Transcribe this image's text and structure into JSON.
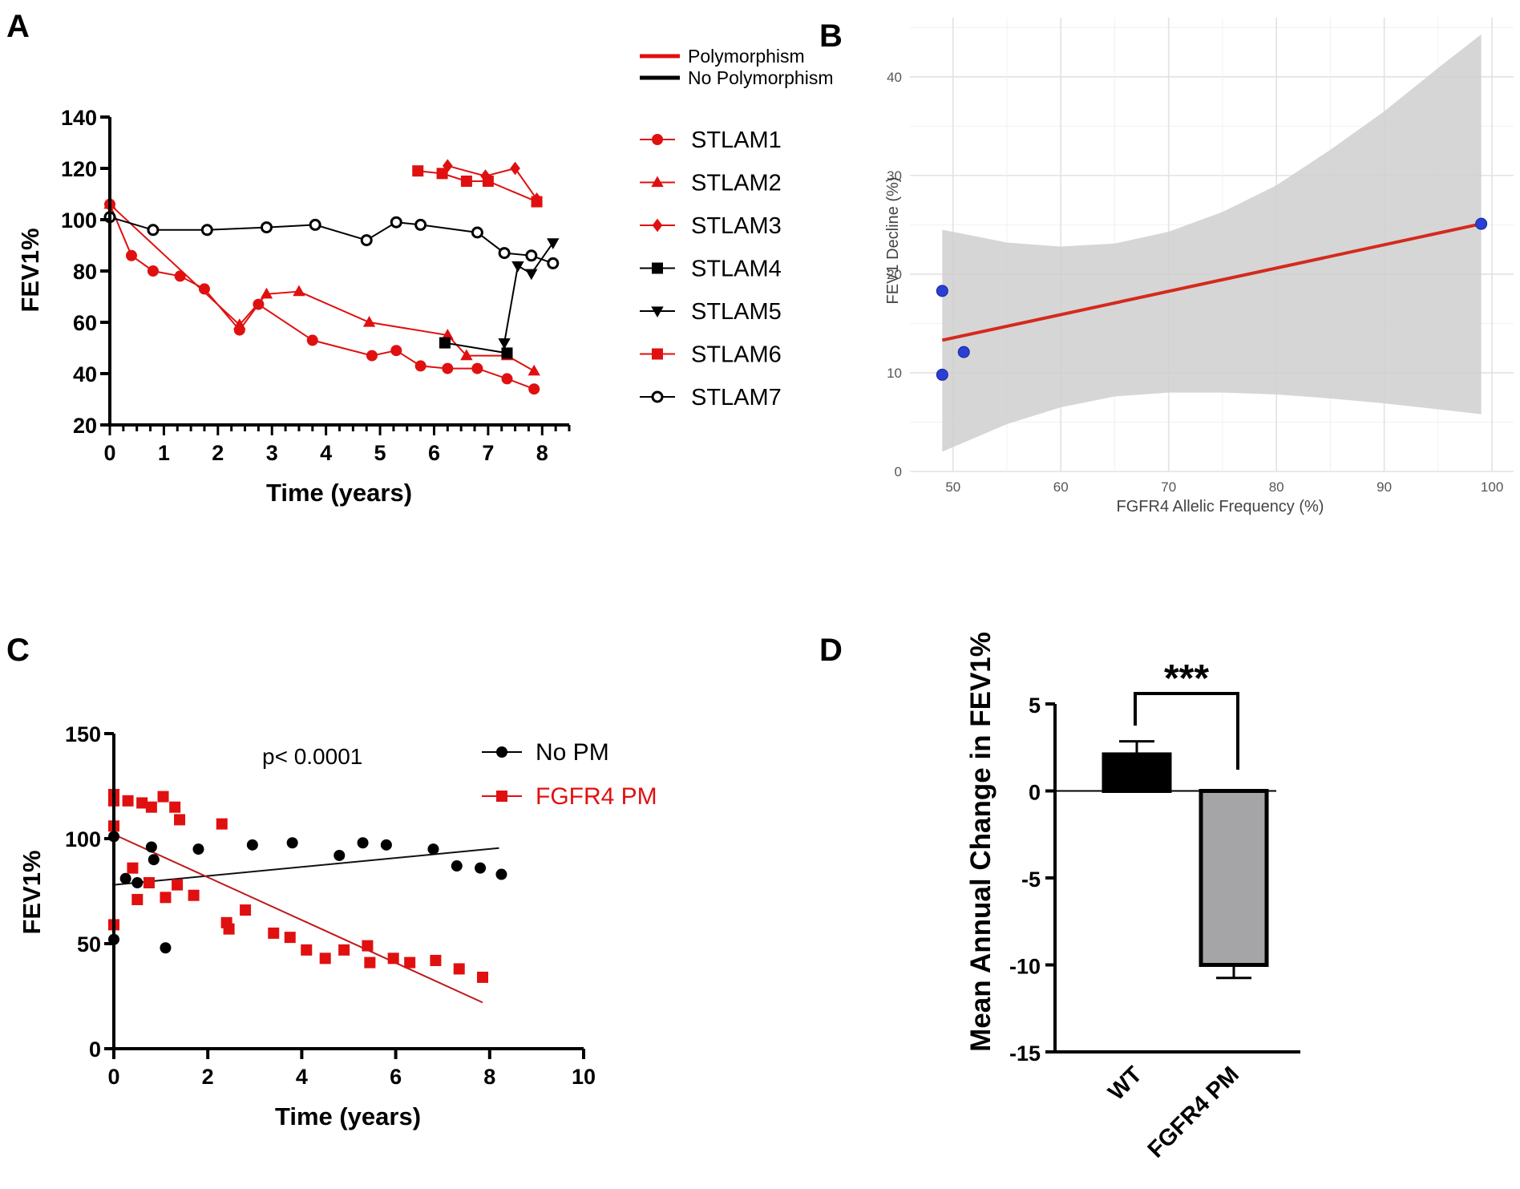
{
  "chart_data": [
    {
      "panel": "A",
      "type": "line",
      "xlabel": "Time (years)",
      "ylabel": "FEV1%",
      "xlim": [
        0,
        8.5
      ],
      "ylim": [
        20,
        140
      ],
      "xticks": [
        0,
        1,
        2,
        3,
        4,
        5,
        6,
        7,
        8
      ],
      "yticks": [
        20,
        40,
        60,
        80,
        100,
        120,
        140
      ],
      "legend_group": [
        {
          "name": "Polymorphism",
          "color": "#e01010"
        },
        {
          "name": "No Polymorphism",
          "color": "#000000"
        }
      ],
      "series": [
        {
          "name": "STLAM1",
          "color": "#e01010",
          "marker": "circle",
          "x": [
            0,
            0.4,
            0.8,
            1.3,
            1.75,
            2.4,
            2.75,
            3.75,
            4.85,
            5.3,
            5.75,
            6.25,
            6.8,
            7.35,
            7.85
          ],
          "y": [
            106,
            86,
            80,
            78,
            73,
            57,
            67,
            53,
            47,
            49,
            43,
            42,
            42,
            38,
            34
          ]
        },
        {
          "name": "STLAM2",
          "color": "#e01010",
          "marker": "triangle",
          "x": [
            0,
            2.4,
            2.9,
            3.5,
            4.8,
            6.25,
            6.6,
            7.35,
            7.85
          ],
          "y": [
            106,
            59,
            71,
            72,
            60,
            55,
            47,
            47,
            41
          ]
        },
        {
          "name": "STLAM3",
          "color": "#e01010",
          "marker": "diamond",
          "x": [
            6.25,
            6.95,
            7.5,
            7.9
          ],
          "y": [
            121,
            117,
            120,
            108
          ]
        },
        {
          "name": "STLAM4",
          "color": "#000000",
          "marker": "square",
          "x": [
            6.2,
            7.35
          ],
          "y": [
            52,
            48
          ]
        },
        {
          "name": "STLAM5",
          "color": "#000000",
          "marker": "triangle-down",
          "x": [
            7.3,
            7.55,
            7.8,
            8.2
          ],
          "y": [
            52,
            82,
            79,
            91
          ]
        },
        {
          "name": "STLAM6",
          "color": "#e01010",
          "marker": "square",
          "x": [
            5.7,
            6.15,
            6.6,
            7.0,
            7.9
          ],
          "y": [
            119,
            118,
            115,
            115,
            107
          ]
        },
        {
          "name": "STLAM7",
          "color": "#000000",
          "marker": "open-circle",
          "x": [
            0,
            0.8,
            1.8,
            2.9,
            3.8,
            4.75,
            5.3,
            5.75,
            6.8,
            7.3,
            7.8,
            8.2
          ],
          "y": [
            101,
            96,
            96,
            97,
            98,
            92,
            99,
            98,
            95,
            87,
            86,
            83
          ]
        }
      ]
    },
    {
      "panel": "B",
      "type": "scatter",
      "xlabel": "FGFR4 Allelic Frequency (%)",
      "ylabel": "FEV1 Decline (%)",
      "xlim": [
        46,
        102
      ],
      "ylim": [
        0,
        46
      ],
      "xticks": [
        50,
        60,
        70,
        80,
        90,
        100
      ],
      "yticks": [
        0,
        10,
        20,
        30,
        40
      ],
      "points": {
        "x": [
          49,
          49,
          51,
          99
        ],
        "y": [
          18.3,
          9.8,
          12.1,
          25.1
        ],
        "color": "#2a3fd6"
      },
      "regression": {
        "x": [
          49,
          99
        ],
        "y": [
          13.3,
          25.1
        ],
        "color": "#d42a1c"
      },
      "confidence_band": {
        "x": [
          49,
          55,
          60,
          65,
          70,
          75,
          80,
          85,
          90,
          95,
          99
        ],
        "upper": [
          24.5,
          23.2,
          22.8,
          23.1,
          24.3,
          26.3,
          29.0,
          32.6,
          36.5,
          40.9,
          44.3
        ],
        "lower": [
          2.0,
          4.8,
          6.5,
          7.6,
          8.0,
          8.0,
          7.8,
          7.4,
          6.9,
          6.3,
          5.8
        ]
      }
    },
    {
      "panel": "C",
      "type": "scatter",
      "xlabel": "Time (years)",
      "ylabel": "FEV1%",
      "xlim": [
        0,
        10
      ],
      "ylim": [
        0,
        150
      ],
      "xticks": [
        0,
        2,
        4,
        6,
        8,
        10
      ],
      "yticks": [
        0,
        50,
        100,
        150
      ],
      "annotation": "p< 0.0001",
      "series": [
        {
          "name": "No PM",
          "color": "#000000",
          "marker": "circle",
          "x": [
            0,
            0,
            0.25,
            0.5,
            0.8,
            0.85,
            1.1,
            1.8,
            2.95,
            3.8,
            4.8,
            5.3,
            5.8,
            6.8,
            7.3,
            7.8,
            8.25
          ],
          "y": [
            101,
            52,
            81,
            79,
            96,
            90,
            48,
            95,
            97,
            98,
            92,
            98,
            97,
            95,
            87,
            86,
            83
          ],
          "fit": {
            "x": [
              0,
              8.2
            ],
            "y": [
              78,
              95.5
            ]
          }
        },
        {
          "name": "FGFR4 PM",
          "color": "#e01010",
          "marker": "square",
          "x": [
            0,
            0,
            0,
            0,
            0.3,
            0.4,
            0.5,
            0.6,
            0.75,
            0.8,
            1.05,
            1.1,
            1.3,
            1.35,
            1.4,
            1.7,
            2.3,
            2.4,
            2.45,
            2.8,
            3.4,
            3.75,
            4.1,
            4.5,
            4.9,
            5.4,
            5.45,
            5.95,
            6.3,
            6.85,
            7.35,
            7.85
          ],
          "y": [
            121,
            118,
            106,
            59,
            118,
            86,
            71,
            117,
            79,
            115,
            120,
            72,
            115,
            78,
            109,
            73,
            107,
            60,
            57,
            66,
            55,
            53,
            47,
            43,
            47,
            49,
            41,
            43,
            41,
            42,
            38,
            34
          ],
          "fit": {
            "x": [
              0,
              7.85
            ],
            "y": [
              102,
              22
            ]
          }
        }
      ]
    },
    {
      "panel": "D",
      "type": "bar",
      "ylabel": "Mean Annual Change in FEV1%",
      "categories": [
        "WT",
        "FGFR4 PM"
      ],
      "values": [
        2.1,
        -10.0
      ],
      "errors": [
        0.75,
        0.75
      ],
      "colors": [
        "#000000",
        "#a5a5a8"
      ],
      "ylim": [
        -15,
        5
      ],
      "yticks": [
        5,
        0,
        -5,
        -10,
        -15
      ],
      "significance": "***"
    }
  ],
  "panel_labels": {
    "a": "A",
    "b": "B",
    "c": "C",
    "d": "D"
  }
}
